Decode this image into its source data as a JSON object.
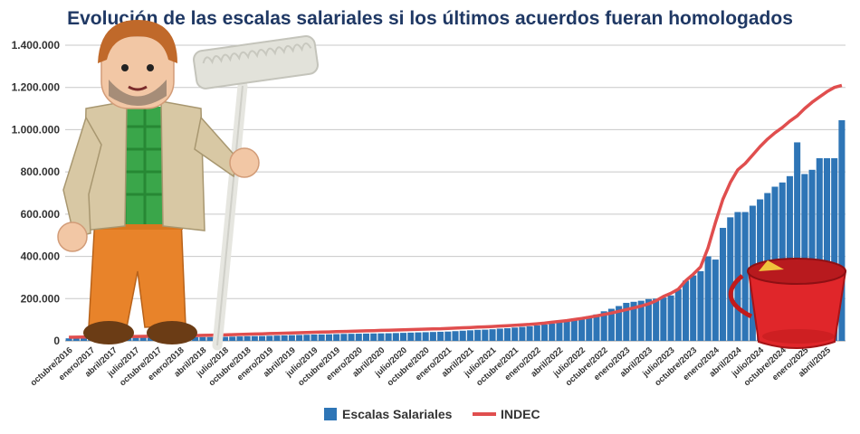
{
  "chart_data": {
    "type": "bar",
    "title": "Evolución de las escalas salariales si los últimos acuerdos fueran homologados",
    "xlabel": "",
    "ylabel": "",
    "ylim": [
      0,
      1400000
    ],
    "yticks": [
      0,
      200000,
      400000,
      600000,
      800000,
      1000000,
      1200000,
      1400000
    ],
    "ytick_labels": [
      "0",
      "200.000",
      "400.000",
      "600.000",
      "800.000",
      "1.000.000",
      "1.200.000",
      "1.400.000"
    ],
    "grid": true,
    "legend_position": "bottom",
    "colors": {
      "bars": "#2e75b6",
      "line": "#e04e4e"
    },
    "categories": [
      "10/2016",
      "11/2016",
      "12/2016",
      "01/2017",
      "02/2017",
      "03/2017",
      "04/2017",
      "05/2017",
      "06/2017",
      "07/2017",
      "08/2017",
      "09/2017",
      "10/2017",
      "11/2017",
      "12/2017",
      "01/2018",
      "02/2018",
      "03/2018",
      "04/2018",
      "05/2018",
      "06/2018",
      "07/2018",
      "08/2018",
      "09/2018",
      "10/2018",
      "11/2018",
      "12/2018",
      "01/2019",
      "02/2019",
      "03/2019",
      "04/2019",
      "05/2019",
      "06/2019",
      "07/2019",
      "08/2019",
      "09/2019",
      "10/2019",
      "11/2019",
      "12/2019",
      "01/2020",
      "02/2020",
      "03/2020",
      "04/2020",
      "05/2020",
      "06/2020",
      "07/2020",
      "08/2020",
      "09/2020",
      "10/2020",
      "11/2020",
      "12/2020",
      "01/2021",
      "02/2021",
      "03/2021",
      "04/2021",
      "05/2021",
      "06/2021",
      "07/2021",
      "08/2021",
      "09/2021",
      "10/2021",
      "11/2021",
      "12/2021",
      "01/2022",
      "02/2022",
      "03/2022",
      "04/2022",
      "05/2022",
      "06/2022",
      "07/2022",
      "08/2022",
      "09/2022",
      "10/2022",
      "11/2022",
      "12/2022",
      "01/2023",
      "02/2023",
      "03/2023",
      "04/2023",
      "05/2023",
      "06/2023",
      "07/2023",
      "08/2023",
      "09/2023",
      "10/2023",
      "11/2023",
      "12/2023",
      "01/2024",
      "02/2024",
      "03/2024",
      "04/2024",
      "05/2024",
      "06/2024",
      "07/2024",
      "08/2024",
      "09/2024",
      "10/2024",
      "11/2024",
      "12/2024",
      "01/2025",
      "02/2025",
      "03/2025",
      "04/2025",
      "05/2025",
      "06/2025"
    ],
    "x_tick_labels": [
      "octubre/2016",
      "enero/2017",
      "abril/2017",
      "julio/2017",
      "octubre/2017",
      "enero/2018",
      "abril/2018",
      "julio/2018",
      "octubre/2018",
      "enero/2019",
      "abril/2019",
      "julio/2019",
      "octubre/2019",
      "enero/2020",
      "abril/2020",
      "julio/2020",
      "octubre/2020",
      "enero/2021",
      "abril/2021",
      "julio/2021",
      "octubre/2021",
      "enero/2022",
      "abril/2022",
      "julio/2022",
      "octubre/2022",
      "enero/2023",
      "abril/2023",
      "julio/2023",
      "octubre/2023",
      "enero/2024",
      "abril/2024",
      "julio/2024",
      "octubre/2024",
      "enero/2025",
      "abril/2025"
    ],
    "series": [
      {
        "name": "Escalas Salariales",
        "type": "bar",
        "values": [
          12000,
          12000,
          12000,
          12500,
          12500,
          13000,
          13000,
          13500,
          14000,
          14500,
          15000,
          15000,
          15500,
          15500,
          16000,
          16500,
          17000,
          17500,
          18000,
          18000,
          18500,
          19000,
          20000,
          21000,
          22000,
          22500,
          23000,
          24000,
          25000,
          26000,
          27000,
          28000,
          29000,
          30000,
          30500,
          31000,
          32000,
          33000,
          33500,
          34000,
          34500,
          35000,
          35500,
          36000,
          37000,
          38000,
          39000,
          40000,
          41000,
          42000,
          43000,
          44000,
          46000,
          48000,
          50000,
          52000,
          53000,
          55000,
          58000,
          60000,
          63000,
          66000,
          69000,
          73000,
          77000,
          82000,
          88000,
          95000,
          102000,
          110000,
          117000,
          125000,
          140000,
          152000,
          165000,
          180000,
          185000,
          190000,
          198000,
          200000,
          205000,
          215000,
          245000,
          285000,
          310000,
          330000,
          400000,
          385000,
          535000,
          585000,
          610000,
          610000,
          640000,
          670000,
          700000,
          730000,
          750000,
          780000,
          940000,
          790000,
          810000,
          865000,
          865000,
          865000,
          1045000
        ]
      },
      {
        "name": "INDEC",
        "type": "line",
        "values": [
          17000,
          17400,
          17800,
          18200,
          18600,
          19000,
          19500,
          20000,
          20500,
          21000,
          21500,
          22000,
          22500,
          23000,
          23600,
          24200,
          24800,
          25400,
          26000,
          26800,
          27600,
          28400,
          29500,
          30500,
          31500,
          32500,
          33500,
          34500,
          35500,
          36500,
          37500,
          38500,
          39500,
          40500,
          41500,
          42500,
          43500,
          44500,
          45500,
          46500,
          47500,
          48500,
          49500,
          50500,
          51500,
          52500,
          53500,
          54500,
          55500,
          56500,
          57500,
          59000,
          60500,
          62000,
          63500,
          65000,
          66500,
          68000,
          70000,
          72000,
          74000,
          76000,
          78000,
          81000,
          84000,
          88000,
          92000,
          96000,
          101000,
          106000,
          112000,
          118000,
          125000,
          132000,
          140000,
          148000,
          156000,
          165000,
          175000,
          190000,
          210000,
          225000,
          245000,
          285000,
          315000,
          350000,
          440000,
          560000,
          670000,
          750000,
          810000,
          840000,
          880000,
          920000,
          955000,
          985000,
          1010000,
          1040000,
          1065000,
          1100000,
          1130000,
          1155000,
          1180000,
          1200000,
          1210000
        ]
      }
    ]
  },
  "illustrations": {
    "figure": "toy-figure-with-mop-icon",
    "bucket": "red-bucket-icon"
  }
}
